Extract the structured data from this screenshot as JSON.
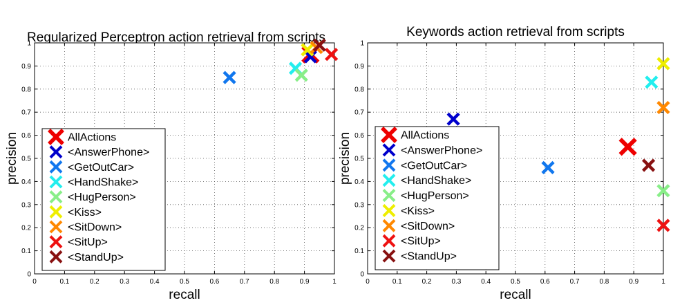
{
  "chart_data": [
    {
      "type": "scatter",
      "title": "Regularized Perceptron action retrieval from scripts",
      "xlabel": "recall",
      "ylabel": "precision",
      "xlim": [
        0,
        1
      ],
      "ylim": [
        0,
        1
      ],
      "xticks": [
        "0",
        "0.1",
        "0.2",
        "0.3",
        "0.4",
        "0.5",
        "0.6",
        "0.7",
        "0.8",
        "0.9",
        "1"
      ],
      "yticks": [
        "0",
        "0.1",
        "0.2",
        "0.3",
        "0.4",
        "0.5",
        "0.6",
        "0.7",
        "0.8",
        "0.9",
        "1"
      ],
      "grid": true,
      "legend_position": "bottom-left",
      "series": [
        {
          "name": "AllActions",
          "color": "#ee0000",
          "x": 0.92,
          "y": 0.95,
          "large": true
        },
        {
          "name": "<AnswerPhone>",
          "color": "#0000cc",
          "x": 0.92,
          "y": 0.94
        },
        {
          "name": "<GetOutCar>",
          "color": "#1177ee",
          "x": 0.65,
          "y": 0.85
        },
        {
          "name": "<HandShake>",
          "color": "#22eeee",
          "x": 0.87,
          "y": 0.89
        },
        {
          "name": "<HugPerson>",
          "color": "#88ee88",
          "x": 0.89,
          "y": 0.86
        },
        {
          "name": "<Kiss>",
          "color": "#eeee00",
          "x": 0.91,
          "y": 0.97
        },
        {
          "name": "<SitDown>",
          "color": "#ff8800",
          "x": 0.94,
          "y": 0.98
        },
        {
          "name": "<SitUp>",
          "color": "#ee1111",
          "x": 0.99,
          "y": 0.95
        },
        {
          "name": "<StandUp>",
          "color": "#881111",
          "x": 0.95,
          "y": 0.99
        }
      ]
    },
    {
      "type": "scatter",
      "title": "Keywords action retrieval from scripts",
      "xlabel": "recall",
      "ylabel": "precision",
      "xlim": [
        0,
        1
      ],
      "ylim": [
        0,
        1
      ],
      "xticks": [
        "0",
        "0.1",
        "0.2",
        "0.3",
        "0.4",
        "0.5",
        "0.6",
        "0.7",
        "0.8",
        "0.9",
        "1"
      ],
      "yticks": [
        "0",
        "0.1",
        "0.2",
        "0.3",
        "0.4",
        "0.5",
        "0.6",
        "0.7",
        "0.8",
        "0.9",
        "1"
      ],
      "grid": true,
      "legend_position": "bottom-left",
      "series": [
        {
          "name": "AllActions",
          "color": "#ee0000",
          "x": 0.88,
          "y": 0.55,
          "large": true
        },
        {
          "name": "<AnswerPhone>",
          "color": "#0000cc",
          "x": 0.29,
          "y": 0.67
        },
        {
          "name": "<GetOutCar>",
          "color": "#1177ee",
          "x": 0.61,
          "y": 0.46
        },
        {
          "name": "<HandShake>",
          "color": "#22eeee",
          "x": 0.96,
          "y": 0.83
        },
        {
          "name": "<HugPerson>",
          "color": "#88ee88",
          "x": 1.0,
          "y": 0.36
        },
        {
          "name": "<Kiss>",
          "color": "#eeee00",
          "x": 1.0,
          "y": 0.91
        },
        {
          "name": "<SitDown>",
          "color": "#ff8800",
          "x": 1.0,
          "y": 0.72
        },
        {
          "name": "<SitUp>",
          "color": "#ee1111",
          "x": 1.0,
          "y": 0.21
        },
        {
          "name": "<StandUp>",
          "color": "#881111",
          "x": 0.95,
          "y": 0.47
        }
      ]
    }
  ]
}
